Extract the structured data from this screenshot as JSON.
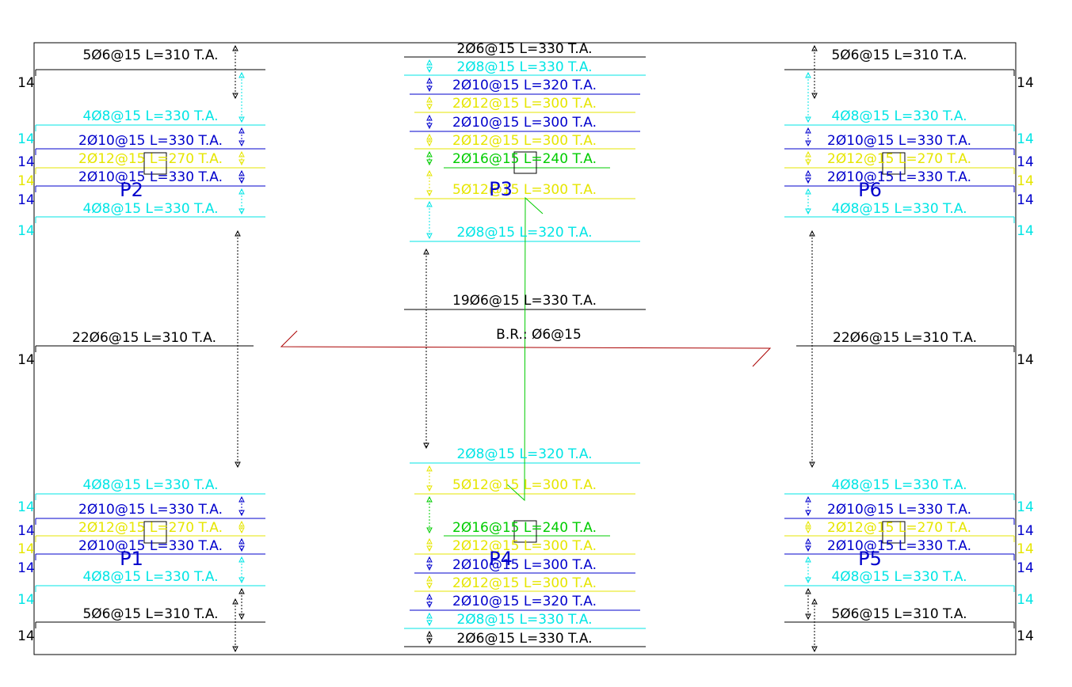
{
  "palette": {
    "black": "#000000",
    "cyan": "#00e5e5",
    "blue": "#0000cc",
    "yellow": "#e6e600",
    "green": "#00cc00",
    "red": "#aa0000",
    "frame": "#000000"
  },
  "piers": [
    "P1",
    "P2",
    "P3",
    "P4",
    "P5",
    "P6"
  ],
  "center_note": "B.R.: Ø6@15",
  "hook_number": "14",
  "left_top_bars": [
    {
      "label": "5Ø6@15 L=310 T.A.",
      "color": "black"
    },
    {
      "label": "4Ø8@15 L=330 T.A.",
      "color": "cyan"
    },
    {
      "label": "2Ø10@15 L=330 T.A.",
      "color": "blue"
    },
    {
      "label": "2Ø12@15 L=270 T.A.",
      "color": "yellow"
    },
    {
      "label": "2Ø10@15 L=330 T.A.",
      "color": "blue"
    },
    {
      "label": "4Ø8@15 L=330 T.A.",
      "color": "cyan"
    }
  ],
  "left_mid_bar": {
    "label": "22Ø6@15 L=310 T.A.",
    "color": "black"
  },
  "left_bottom_bars": [
    {
      "label": "4Ø8@15 L=330 T.A.",
      "color": "cyan"
    },
    {
      "label": "2Ø10@15 L=330 T.A.",
      "color": "blue"
    },
    {
      "label": "2Ø12@15 L=270 T.A.",
      "color": "yellow"
    },
    {
      "label": "2Ø10@15 L=330 T.A.",
      "color": "blue"
    },
    {
      "label": "4Ø8@15 L=330 T.A.",
      "color": "cyan"
    },
    {
      "label": "5Ø6@15 L=310 T.A.",
      "color": "black"
    }
  ],
  "center_top_bars": [
    {
      "label": "2Ø6@15 L=330 T.A.",
      "color": "black"
    },
    {
      "label": "2Ø8@15 L=330 T.A.",
      "color": "cyan"
    },
    {
      "label": "2Ø10@15 L=320 T.A.",
      "color": "blue"
    },
    {
      "label": "2Ø12@15 L=300 T.A.",
      "color": "yellow"
    },
    {
      "label": "2Ø10@15 L=300 T.A.",
      "color": "blue"
    },
    {
      "label": "2Ø12@15 L=300 T.A.",
      "color": "yellow"
    },
    {
      "label": "2Ø16@15 L=240 T.A.",
      "color": "green"
    },
    {
      "label": "5Ø12@15 L=300 T.A.",
      "color": "yellow"
    },
    {
      "label": "2Ø8@15 L=320 T.A.",
      "color": "cyan"
    }
  ],
  "center_mid_bar": {
    "label": "19Ø6@15 L=330 T.A.",
    "color": "black"
  },
  "center_bottom_bars": [
    {
      "label": "2Ø8@15 L=320 T.A.",
      "color": "cyan"
    },
    {
      "label": "5Ø12@15 L=300 T.A.",
      "color": "yellow"
    },
    {
      "label": "2Ø16@15 L=240 T.A.",
      "color": "green"
    },
    {
      "label": "2Ø12@15 L=300 T.A.",
      "color": "yellow"
    },
    {
      "label": "2Ø10@15 L=300 T.A.",
      "color": "blue"
    },
    {
      "label": "2Ø12@15 L=300 T.A.",
      "color": "yellow"
    },
    {
      "label": "2Ø10@15 L=320 T.A.",
      "color": "blue"
    },
    {
      "label": "2Ø8@15 L=330 T.A.",
      "color": "cyan"
    },
    {
      "label": "2Ø6@15 L=330 T.A.",
      "color": "black"
    }
  ],
  "right_top_bars": [
    {
      "label": "5Ø6@15 L=310 T.A.",
      "color": "black"
    },
    {
      "label": "4Ø8@15 L=330 T.A.",
      "color": "cyan"
    },
    {
      "label": "2Ø10@15 L=330 T.A.",
      "color": "blue"
    },
    {
      "label": "2Ø12@15 L=270 T.A.",
      "color": "yellow"
    },
    {
      "label": "2Ø10@15 L=330 T.A.",
      "color": "blue"
    },
    {
      "label": "4Ø8@15 L=330 T.A.",
      "color": "cyan"
    }
  ],
  "right_mid_bar": {
    "label": "22Ø6@15 L=310 T.A.",
    "color": "black"
  },
  "right_bottom_bars": [
    {
      "label": "4Ø8@15 L=330 T.A.",
      "color": "cyan"
    },
    {
      "label": "2Ø10@15 L=330 T.A.",
      "color": "blue"
    },
    {
      "label": "2Ø12@15 L=270 T.A.",
      "color": "yellow"
    },
    {
      "label": "2Ø10@15 L=330 T.A.",
      "color": "blue"
    },
    {
      "label": "4Ø8@15 L=330 T.A.",
      "color": "cyan"
    },
    {
      "label": "5Ø6@15 L=310 T.A.",
      "color": "black"
    }
  ],
  "left_hooks": [
    {
      "text": "14",
      "color": "black"
    },
    {
      "text": "14",
      "color": "cyan"
    },
    {
      "text": "14",
      "color": "blue"
    },
    {
      "text": "14",
      "color": "yellow"
    },
    {
      "text": "14",
      "color": "blue"
    },
    {
      "text": "14",
      "color": "cyan"
    },
    {
      "text": "14",
      "color": "black"
    },
    {
      "text": "14",
      "color": "cyan"
    },
    {
      "text": "14",
      "color": "blue"
    },
    {
      "text": "14",
      "color": "yellow"
    },
    {
      "text": "14",
      "color": "blue"
    },
    {
      "text": "14",
      "color": "cyan"
    },
    {
      "text": "14",
      "color": "black"
    }
  ],
  "right_hooks": [
    {
      "text": "14",
      "color": "black"
    },
    {
      "text": "14",
      "color": "cyan"
    },
    {
      "text": "14",
      "color": "blue"
    },
    {
      "text": "14",
      "color": "yellow"
    },
    {
      "text": "14",
      "color": "blue"
    },
    {
      "text": "14",
      "color": "cyan"
    },
    {
      "text": "14",
      "color": "black"
    },
    {
      "text": "14",
      "color": "cyan"
    },
    {
      "text": "14",
      "color": "blue"
    },
    {
      "text": "14",
      "color": "yellow"
    },
    {
      "text": "14",
      "color": "blue"
    },
    {
      "text": "14",
      "color": "cyan"
    },
    {
      "text": "14",
      "color": "black"
    }
  ]
}
